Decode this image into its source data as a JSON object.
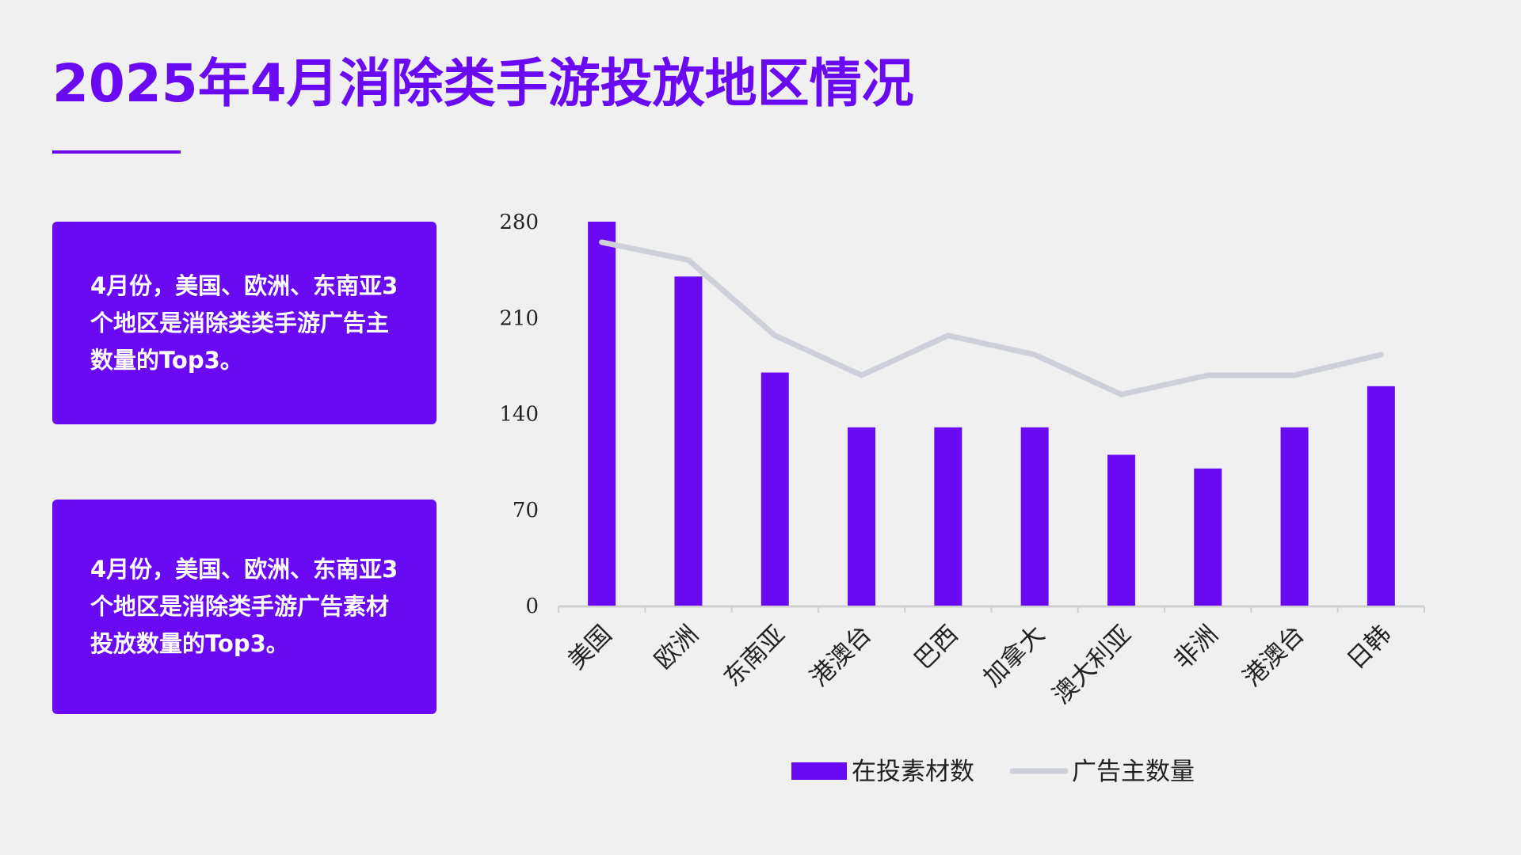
{
  "page": {
    "title": "2025年4月消除类手游投放地区情况"
  },
  "cards": [
    {
      "text": "4月份，美国、欧洲、东南亚3个地区是消除类类手游广告主数量的Top3。"
    },
    {
      "text": "4月份，美国、欧洲、东南亚3个地区是消除类手游广告素材投放数量的Top3。"
    }
  ],
  "colors": {
    "accent": "#6a0af2",
    "line": "#cdd0d8",
    "axis": "#d0d0d0",
    "background": "#f0f0f0"
  },
  "chart_data": {
    "type": "bar",
    "categories": [
      "美国",
      "欧洲",
      "东南亚",
      "港澳台",
      "巴西",
      "加拿大",
      "澳大利亚",
      "非洲",
      "港澳台",
      "日韩"
    ],
    "series": [
      {
        "name": "在投素材数",
        "type": "bar",
        "color": "#6a0af2",
        "values": [
          280,
          240,
          170,
          130,
          130,
          130,
          110,
          100,
          130,
          160
        ]
      },
      {
        "name": "广告主数量",
        "type": "line",
        "color": "#cdd0d8",
        "values": [
          265,
          252,
          197,
          168,
          197,
          183,
          154,
          168,
          168,
          183
        ]
      }
    ],
    "yticks": [
      "0",
      "70",
      "140",
      "210",
      "280"
    ],
    "ylim": [
      0,
      280
    ],
    "title": "",
    "xlabel": "",
    "ylabel": "",
    "legend": "bottom",
    "grid": false
  }
}
